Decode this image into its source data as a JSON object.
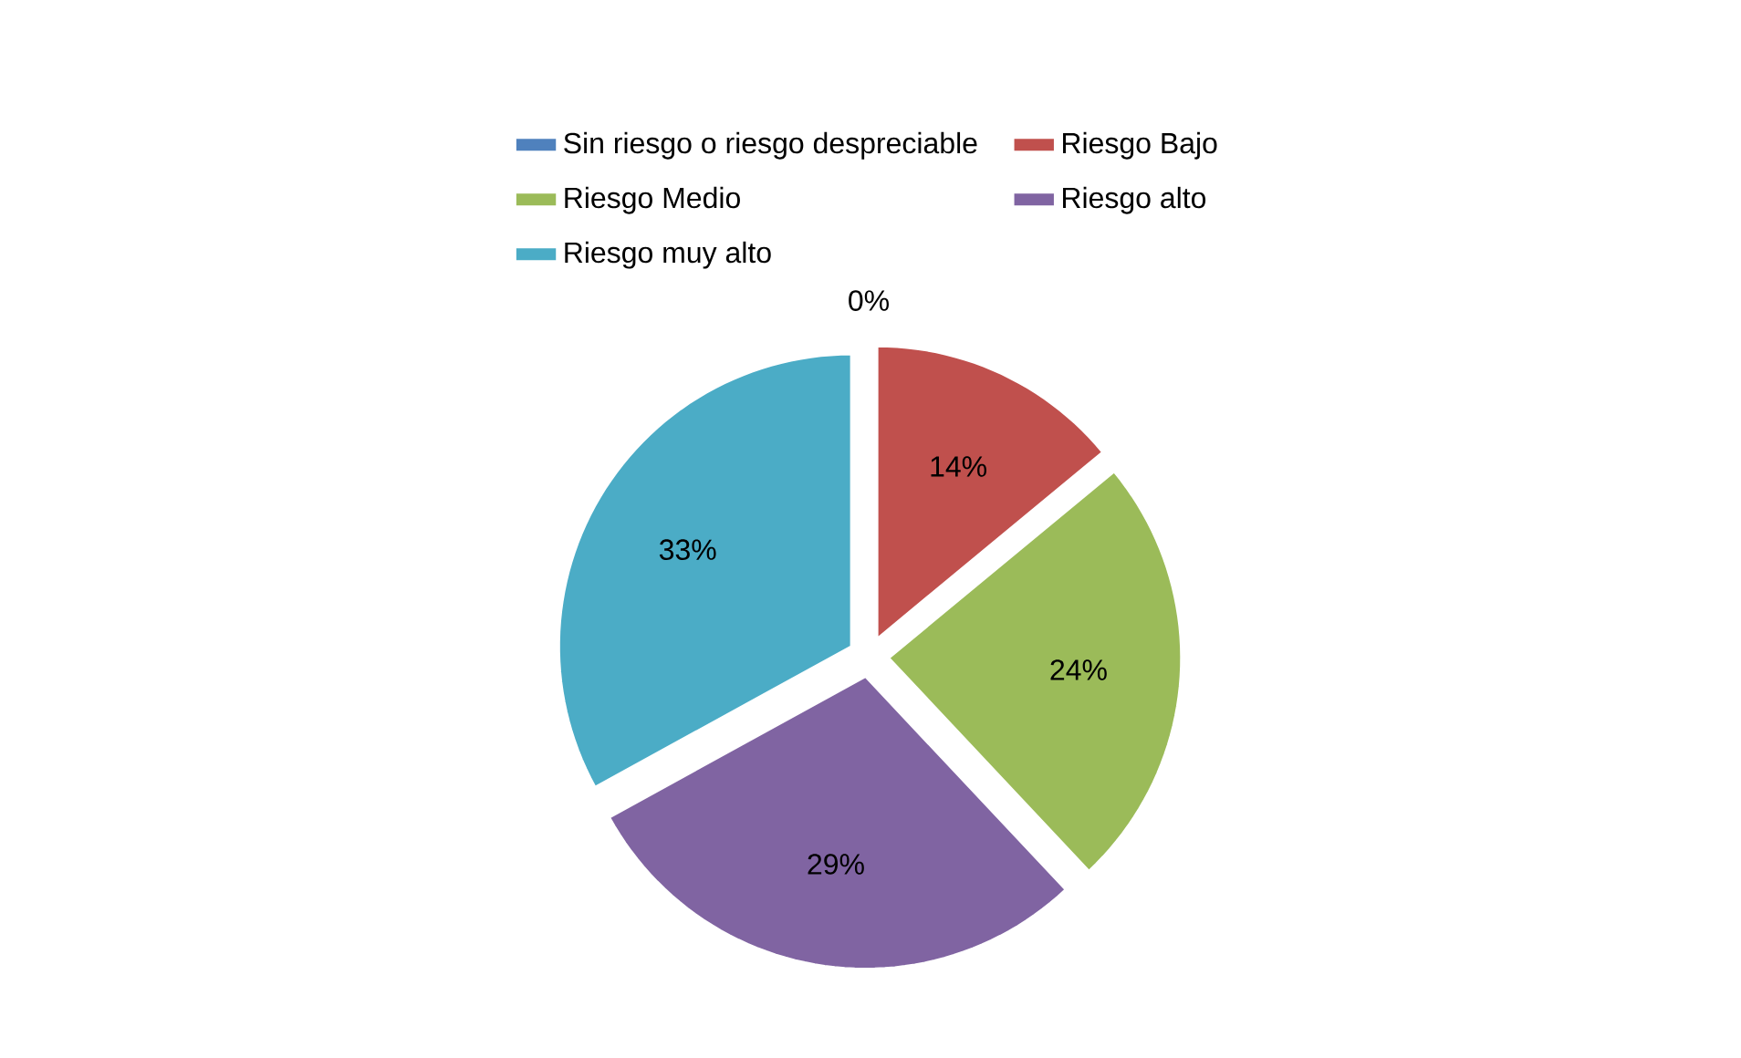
{
  "chart_data": {
    "type": "pie",
    "categories": [
      "Sin riesgo o riesgo despreciable",
      "Riesgo Bajo",
      "Riesgo Medio",
      "Riesgo alto",
      "Riesgo muy alto"
    ],
    "values": [
      0,
      14,
      24,
      29,
      33
    ],
    "colors": [
      "#4f81bd",
      "#c0504d",
      "#9bbb59",
      "#8064a2",
      "#4bacc6"
    ],
    "value_labels": [
      "0%",
      "14%",
      "24%",
      "29%",
      "33%"
    ],
    "legend": "top"
  }
}
